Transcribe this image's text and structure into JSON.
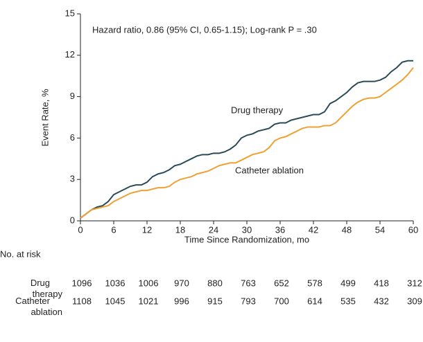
{
  "chart_data": {
    "type": "line",
    "annotation": "Hazard ratio, 0.86 (95% CI, 0.65-1.15); Log-rank P = .30",
    "xlabel": "Time Since Randomization, mo",
    "ylabel": "Event Rate, %",
    "x": [
      0,
      1,
      2,
      3,
      4,
      5,
      6,
      7,
      8,
      9,
      10,
      11,
      12,
      13,
      14,
      15,
      16,
      17,
      18,
      19,
      20,
      21,
      22,
      23,
      24,
      25,
      26,
      27,
      28,
      29,
      30,
      31,
      32,
      33,
      34,
      35,
      36,
      37,
      38,
      39,
      40,
      41,
      42,
      43,
      44,
      45,
      46,
      47,
      48,
      49,
      50,
      51,
      52,
      53,
      54,
      55,
      56,
      57,
      58,
      59,
      60
    ],
    "series": [
      {
        "name": "Drug therapy",
        "color": "#2b4a57",
        "values": [
          0.2,
          0.5,
          0.8,
          1.0,
          1.1,
          1.4,
          1.9,
          2.1,
          2.3,
          2.5,
          2.6,
          2.6,
          2.8,
          3.2,
          3.4,
          3.5,
          3.7,
          4.0,
          4.1,
          4.3,
          4.5,
          4.7,
          4.8,
          4.8,
          4.9,
          4.9,
          5.0,
          5.2,
          5.5,
          6.0,
          6.2,
          6.3,
          6.5,
          6.6,
          6.7,
          7.0,
          7.1,
          7.1,
          7.3,
          7.4,
          7.5,
          7.6,
          7.7,
          7.7,
          7.9,
          8.5,
          8.7,
          9.0,
          9.3,
          9.7,
          10.0,
          10.1,
          10.1,
          10.1,
          10.2,
          10.4,
          10.8,
          11.1,
          11.5,
          11.6,
          11.6
        ]
      },
      {
        "name": "Catheter ablation",
        "color": "#f0a030",
        "values": [
          0.2,
          0.5,
          0.8,
          0.9,
          1.0,
          1.1,
          1.4,
          1.6,
          1.8,
          2.0,
          2.1,
          2.2,
          2.2,
          2.3,
          2.4,
          2.4,
          2.5,
          2.8,
          3.0,
          3.1,
          3.2,
          3.4,
          3.5,
          3.6,
          3.8,
          4.0,
          4.1,
          4.2,
          4.2,
          4.4,
          4.6,
          4.8,
          4.9,
          5.0,
          5.3,
          5.8,
          6.0,
          6.1,
          6.3,
          6.5,
          6.7,
          6.8,
          6.8,
          6.8,
          6.9,
          6.9,
          7.1,
          7.5,
          7.9,
          8.3,
          8.6,
          8.8,
          8.9,
          8.9,
          9.0,
          9.3,
          9.6,
          9.9,
          10.2,
          10.6,
          11.1
        ]
      }
    ],
    "xlim": [
      0,
      60
    ],
    "xticks": [
      0,
      6,
      12,
      18,
      24,
      30,
      36,
      42,
      48,
      54,
      60
    ],
    "ylim": [
      0,
      15
    ],
    "yticks": [
      0,
      3,
      6,
      9,
      12,
      15
    ],
    "grid": false,
    "risk_table": {
      "title": "No. at risk",
      "rows": [
        {
          "name": "Drug therapy",
          "values": [
            1096,
            1036,
            1006,
            970,
            880,
            763,
            652,
            578,
            499,
            418,
            312
          ]
        },
        {
          "name": "Catheter ablation",
          "values": [
            1108,
            1045,
            1021,
            996,
            915,
            793,
            700,
            614,
            535,
            432,
            309
          ]
        }
      ]
    }
  }
}
